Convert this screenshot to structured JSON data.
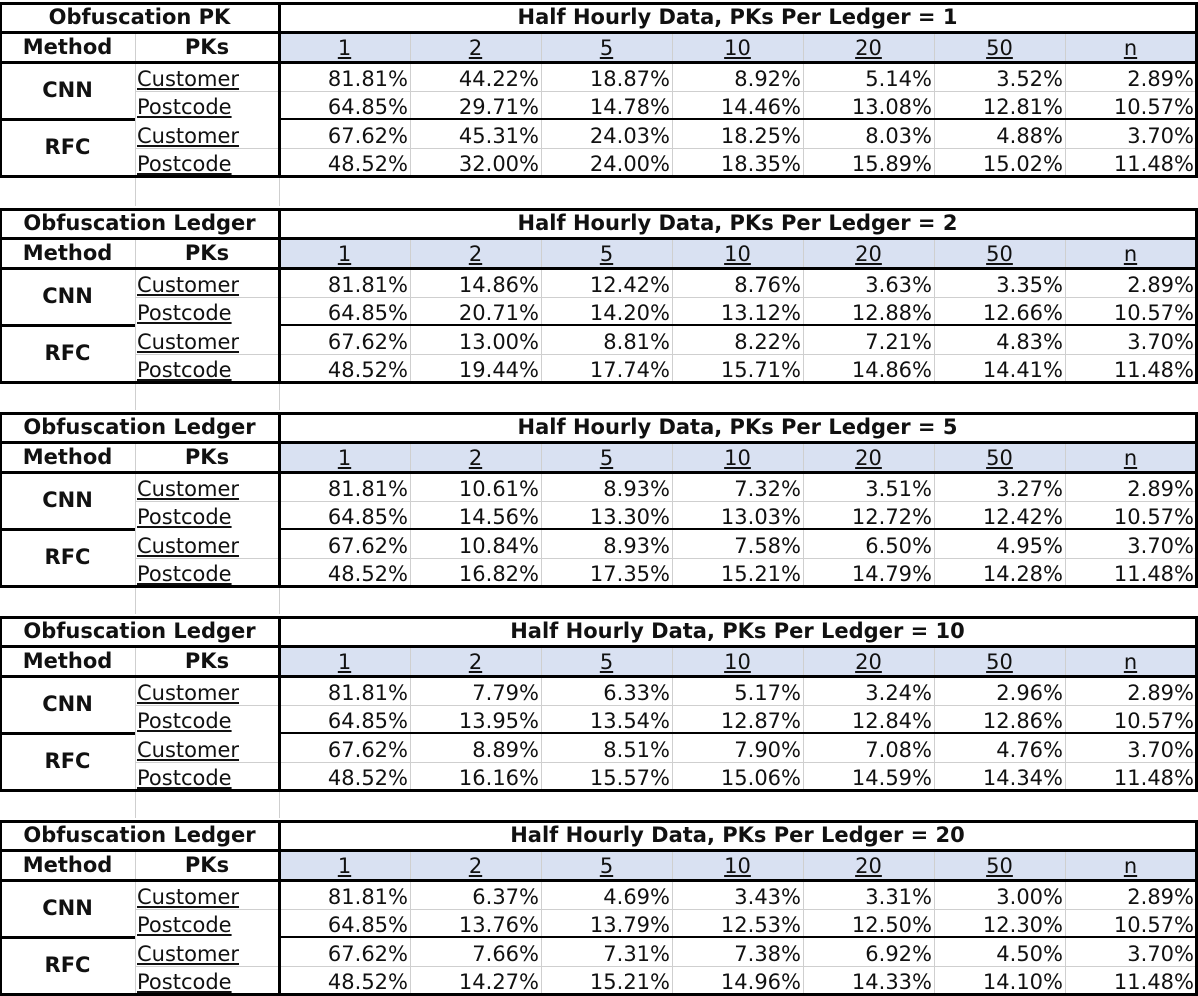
{
  "sections": [
    {
      "corner_title": "Obfuscation PK",
      "table_title": "Half Hourly Data, PKs Per Ledger = 1",
      "method_header": "Method",
      "pks_header": "PKs",
      "columns": [
        "1",
        "2",
        "5",
        "10",
        "20",
        "50",
        "n"
      ],
      "rows": [
        {
          "method": "CNN",
          "pk": "Customer",
          "values": [
            "81.81%",
            "44.22%",
            "18.87%",
            "8.92%",
            "5.14%",
            "3.52%",
            "2.89%"
          ]
        },
        {
          "method": "CNN",
          "pk": "Postcode",
          "values": [
            "64.85%",
            "29.71%",
            "14.78%",
            "14.46%",
            "13.08%",
            "12.81%",
            "10.57%"
          ]
        },
        {
          "method": "RFC",
          "pk": "Customer",
          "values": [
            "67.62%",
            "45.31%",
            "24.03%",
            "18.25%",
            "8.03%",
            "4.88%",
            "3.70%"
          ]
        },
        {
          "method": "RFC",
          "pk": "Postcode",
          "values": [
            "48.52%",
            "32.00%",
            "24.00%",
            "18.35%",
            "15.89%",
            "15.02%",
            "11.48%"
          ]
        }
      ]
    },
    {
      "corner_title": "Obfuscation Ledger",
      "table_title": "Half Hourly Data, PKs Per Ledger = 2",
      "method_header": "Method",
      "pks_header": "PKs",
      "columns": [
        "1",
        "2",
        "5",
        "10",
        "20",
        "50",
        "n"
      ],
      "rows": [
        {
          "method": "CNN",
          "pk": "Customer",
          "values": [
            "81.81%",
            "14.86%",
            "12.42%",
            "8.76%",
            "3.63%",
            "3.35%",
            "2.89%"
          ]
        },
        {
          "method": "CNN",
          "pk": "Postcode",
          "values": [
            "64.85%",
            "20.71%",
            "14.20%",
            "13.12%",
            "12.88%",
            "12.66%",
            "10.57%"
          ]
        },
        {
          "method": "RFC",
          "pk": "Customer",
          "values": [
            "67.62%",
            "13.00%",
            "8.81%",
            "8.22%",
            "7.21%",
            "4.83%",
            "3.70%"
          ]
        },
        {
          "method": "RFC",
          "pk": "Postcode",
          "values": [
            "48.52%",
            "19.44%",
            "17.74%",
            "15.71%",
            "14.86%",
            "14.41%",
            "11.48%"
          ]
        }
      ]
    },
    {
      "corner_title": "Obfuscation Ledger",
      "table_title": "Half Hourly Data, PKs Per Ledger = 5",
      "method_header": "Method",
      "pks_header": "PKs",
      "columns": [
        "1",
        "2",
        "5",
        "10",
        "20",
        "50",
        "n"
      ],
      "rows": [
        {
          "method": "CNN",
          "pk": "Customer",
          "values": [
            "81.81%",
            "10.61%",
            "8.93%",
            "7.32%",
            "3.51%",
            "3.27%",
            "2.89%"
          ]
        },
        {
          "method": "CNN",
          "pk": "Postcode",
          "values": [
            "64.85%",
            "14.56%",
            "13.30%",
            "13.03%",
            "12.72%",
            "12.42%",
            "10.57%"
          ]
        },
        {
          "method": "RFC",
          "pk": "Customer",
          "values": [
            "67.62%",
            "10.84%",
            "8.93%",
            "7.58%",
            "6.50%",
            "4.95%",
            "3.70%"
          ]
        },
        {
          "method": "RFC",
          "pk": "Postcode",
          "values": [
            "48.52%",
            "16.82%",
            "17.35%",
            "15.21%",
            "14.79%",
            "14.28%",
            "11.48%"
          ]
        }
      ]
    },
    {
      "corner_title": "Obfuscation Ledger",
      "table_title": "Half Hourly Data, PKs Per Ledger = 10",
      "method_header": "Method",
      "pks_header": "PKs",
      "columns": [
        "1",
        "2",
        "5",
        "10",
        "20",
        "50",
        "n"
      ],
      "rows": [
        {
          "method": "CNN",
          "pk": "Customer",
          "values": [
            "81.81%",
            "7.79%",
            "6.33%",
            "5.17%",
            "3.24%",
            "2.96%",
            "2.89%"
          ]
        },
        {
          "method": "CNN",
          "pk": "Postcode",
          "values": [
            "64.85%",
            "13.95%",
            "13.54%",
            "12.87%",
            "12.84%",
            "12.86%",
            "10.57%"
          ]
        },
        {
          "method": "RFC",
          "pk": "Customer",
          "values": [
            "67.62%",
            "8.89%",
            "8.51%",
            "7.90%",
            "7.08%",
            "4.76%",
            "3.70%"
          ]
        },
        {
          "method": "RFC",
          "pk": "Postcode",
          "values": [
            "48.52%",
            "16.16%",
            "15.57%",
            "15.06%",
            "14.59%",
            "14.34%",
            "11.48%"
          ]
        }
      ]
    },
    {
      "corner_title": "Obfuscation Ledger",
      "table_title": "Half Hourly Data, PKs Per Ledger = 20",
      "method_header": "Method",
      "pks_header": "PKs",
      "columns": [
        "1",
        "2",
        "5",
        "10",
        "20",
        "50",
        "n"
      ],
      "rows": [
        {
          "method": "CNN",
          "pk": "Customer",
          "values": [
            "81.81%",
            "6.37%",
            "4.69%",
            "3.43%",
            "3.31%",
            "3.00%",
            "2.89%"
          ]
        },
        {
          "method": "CNN",
          "pk": "Postcode",
          "values": [
            "64.85%",
            "13.76%",
            "13.79%",
            "12.53%",
            "12.50%",
            "12.30%",
            "10.57%"
          ]
        },
        {
          "method": "RFC",
          "pk": "Customer",
          "values": [
            "67.62%",
            "7.66%",
            "7.31%",
            "7.38%",
            "6.92%",
            "4.50%",
            "3.70%"
          ]
        },
        {
          "method": "RFC",
          "pk": "Postcode",
          "values": [
            "48.52%",
            "14.27%",
            "15.21%",
            "14.96%",
            "14.33%",
            "14.10%",
            "11.48%"
          ]
        }
      ]
    }
  ]
}
